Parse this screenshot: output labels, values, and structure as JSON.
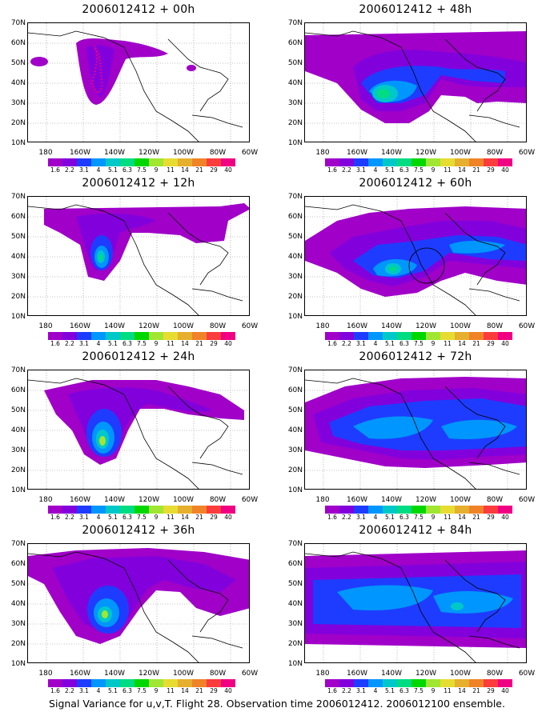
{
  "panels": [
    {
      "title": "2006012412 + 00h"
    },
    {
      "title": "2006012412 + 48h"
    },
    {
      "title": "2006012412 + 12h"
    },
    {
      "title": "2006012412 + 60h"
    },
    {
      "title": "2006012412 + 24h"
    },
    {
      "title": "2006012412 + 72h"
    },
    {
      "title": "2006012412 + 36h"
    },
    {
      "title": "2006012412 + 84h"
    }
  ],
  "lat_labels": [
    "70N",
    "60N",
    "50N",
    "40N",
    "30N",
    "20N",
    "10N"
  ],
  "lon_labels": [
    "180",
    "160W",
    "140W",
    "120W",
    "100W",
    "80W",
    "60W"
  ],
  "colorbar": {
    "labels": [
      "1.6",
      "2.2",
      "3.1",
      "4",
      "5.1",
      "6.3",
      "7.5",
      "9",
      "11",
      "14",
      "21",
      "29",
      "40"
    ],
    "colors": [
      "#a000c8",
      "#8200dc",
      "#1e3cff",
      "#0096ff",
      "#00c8c8",
      "#00dc82",
      "#00d700",
      "#a0e632",
      "#e6dc32",
      "#e6af2d",
      "#f08228",
      "#fa3c3c",
      "#f00082"
    ]
  },
  "footer": "Signal Variance for u,v,T. Flight 28. Observation time 2006012412. 2006012100 ensemble."
}
